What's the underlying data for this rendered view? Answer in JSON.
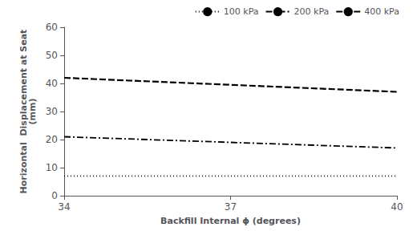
{
  "chart_data": {
    "type": "line",
    "x": [
      34,
      37,
      40
    ],
    "series": [
      {
        "name": "100 kPa",
        "color": "#000000",
        "line_style": "dotted",
        "values": [
          7,
          7,
          7
        ]
      },
      {
        "name": "200 kPa",
        "color": "#000000",
        "line_style": "dashdot",
        "values": [
          21,
          19,
          17
        ]
      },
      {
        "name": "400 kPa",
        "color": "#000000",
        "line_style": "dashed",
        "values": [
          42,
          39.5,
          37
        ]
      }
    ],
    "xlabel": "Backfill Internal ϕ (degrees)",
    "ylabel": "Horizontal  Displacement at Seat\n(mm)",
    "xlim": [
      34,
      40
    ],
    "xticks": [
      34,
      37,
      40
    ],
    "ylim": [
      0,
      60
    ],
    "yticks": [
      0,
      10,
      20,
      30,
      40,
      50,
      60
    ],
    "grid": false,
    "legend": "upper right"
  }
}
